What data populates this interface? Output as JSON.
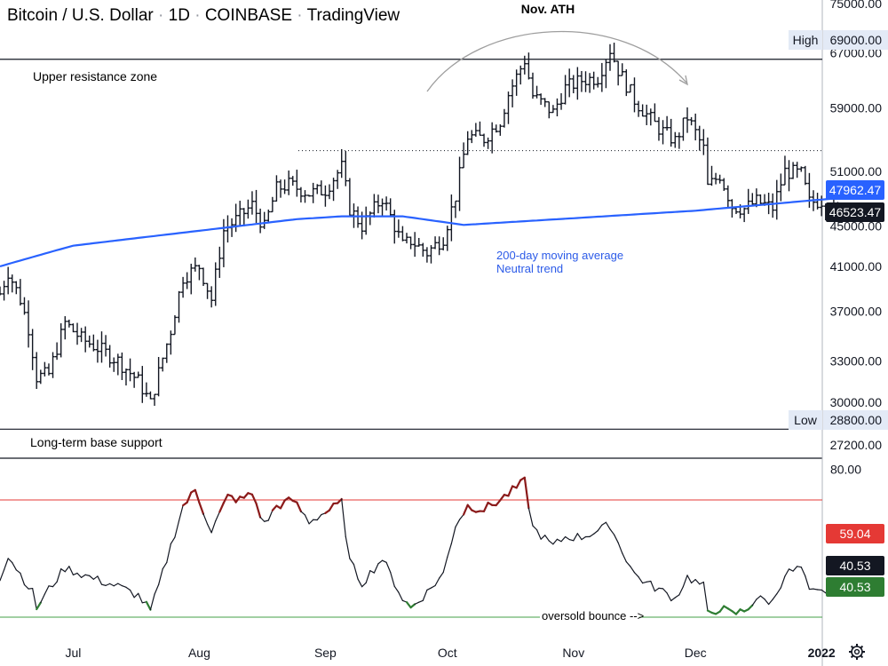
{
  "chart_data": [
    {
      "type": "ohlc",
      "title": "Bitcoin / U.S. Dollar · 1D · COINBASE · TradingView",
      "symbol": "Bitcoin / U.S. Dollar",
      "interval": "1D",
      "exchange": "COINBASE",
      "source": "TradingView",
      "y_scale": "log",
      "ylim": [
        26500,
        76500
      ],
      "y_ticks": [
        {
          "value": 75000,
          "label": "75000.00"
        },
        {
          "value": 67000,
          "label": "67000.00"
        },
        {
          "value": 59000,
          "label": "59000.00"
        },
        {
          "value": 51000,
          "label": "51000.00"
        },
        {
          "value": 45000,
          "label": "45000.00"
        },
        {
          "value": 41000,
          "label": "41000.00"
        },
        {
          "value": 37000,
          "label": "37000.00"
        },
        {
          "value": 33000,
          "label": "33000.00"
        },
        {
          "value": 30000,
          "label": "30000.00"
        },
        {
          "value": 27200,
          "label": "27200.00"
        }
      ],
      "x_range": [
        "2021-06-13",
        "2022-01-08"
      ],
      "x_ticks": [
        {
          "date": "2021-07-01",
          "label": "Jul"
        },
        {
          "date": "2021-08-01",
          "label": "Aug"
        },
        {
          "date": "2021-09-01",
          "label": "Sep"
        },
        {
          "date": "2021-10-01",
          "label": "Oct"
        },
        {
          "date": "2021-11-01",
          "label": "Nov"
        },
        {
          "date": "2021-12-01",
          "label": "Dec"
        },
        {
          "date": "2022-01-01",
          "label": "2022"
        }
      ],
      "anchors": [
        {
          "date": "2021-06-13",
          "close": 38500
        },
        {
          "date": "2021-06-15",
          "close": 40500
        },
        {
          "date": "2021-06-18",
          "close": 38000
        },
        {
          "date": "2021-06-20",
          "close": 35600
        },
        {
          "date": "2021-06-22",
          "close": 31800
        },
        {
          "date": "2021-06-25",
          "close": 32000
        },
        {
          "date": "2021-06-29",
          "close": 36000
        },
        {
          "date": "2021-07-03",
          "close": 34700
        },
        {
          "date": "2021-07-07",
          "close": 34000
        },
        {
          "date": "2021-07-12",
          "close": 33000
        },
        {
          "date": "2021-07-17",
          "close": 31500
        },
        {
          "date": "2021-07-20",
          "close": 29900
        },
        {
          "date": "2021-07-22",
          "close": 32100
        },
        {
          "date": "2021-07-25",
          "close": 35400
        },
        {
          "date": "2021-07-28",
          "close": 40000
        },
        {
          "date": "2021-08-01",
          "close": 41000
        },
        {
          "date": "2021-08-04",
          "close": 38000
        },
        {
          "date": "2021-08-07",
          "close": 44500
        },
        {
          "date": "2021-08-11",
          "close": 46000
        },
        {
          "date": "2021-08-14",
          "close": 47200
        },
        {
          "date": "2021-08-17",
          "close": 44800
        },
        {
          "date": "2021-08-20",
          "close": 49000
        },
        {
          "date": "2021-08-23",
          "close": 49500
        },
        {
          "date": "2021-08-28",
          "close": 48500
        },
        {
          "date": "2021-09-01",
          "close": 48900
        },
        {
          "date": "2021-09-05",
          "close": 51500
        },
        {
          "date": "2021-09-07",
          "close": 46800
        },
        {
          "date": "2021-09-10",
          "close": 45000
        },
        {
          "date": "2021-09-15",
          "close": 48000
        },
        {
          "date": "2021-09-20",
          "close": 43000
        },
        {
          "date": "2021-09-22",
          "close": 43500
        },
        {
          "date": "2021-09-26",
          "close": 42300
        },
        {
          "date": "2021-09-30",
          "close": 43800
        },
        {
          "date": "2021-10-03",
          "close": 48200
        },
        {
          "date": "2021-10-06",
          "close": 55300
        },
        {
          "date": "2021-10-10",
          "close": 55000
        },
        {
          "date": "2021-10-14",
          "close": 57300
        },
        {
          "date": "2021-10-16",
          "close": 60900
        },
        {
          "date": "2021-10-20",
          "close": 65900
        },
        {
          "date": "2021-10-22",
          "close": 60700
        },
        {
          "date": "2021-10-27",
          "close": 58400
        },
        {
          "date": "2021-10-30",
          "close": 61800
        },
        {
          "date": "2021-11-03",
          "close": 62900
        },
        {
          "date": "2021-11-07",
          "close": 63300
        },
        {
          "date": "2021-11-10",
          "close": 67500
        },
        {
          "date": "2021-11-12",
          "close": 64400
        },
        {
          "date": "2021-11-16",
          "close": 60100
        },
        {
          "date": "2021-11-19",
          "close": 58100
        },
        {
          "date": "2021-11-22",
          "close": 56300
        },
        {
          "date": "2021-11-26",
          "close": 54700
        },
        {
          "date": "2021-11-29",
          "close": 57800
        },
        {
          "date": "2021-12-03",
          "close": 53700
        },
        {
          "date": "2021-12-04",
          "close": 49200
        },
        {
          "date": "2021-12-07",
          "close": 50600
        },
        {
          "date": "2021-12-10",
          "close": 47100
        },
        {
          "date": "2021-12-13",
          "close": 46800
        },
        {
          "date": "2021-12-16",
          "close": 47600
        },
        {
          "date": "2021-12-20",
          "close": 46900
        },
        {
          "date": "2021-12-23",
          "close": 51000
        },
        {
          "date": "2021-12-27",
          "close": 50700
        },
        {
          "date": "2021-12-29",
          "close": 47500
        },
        {
          "date": "2022-01-01",
          "close": 47700
        },
        {
          "date": "2022-01-04",
          "close": 46400
        },
        {
          "date": "2022-01-05",
          "close": 46523
        }
      ],
      "moving_average": {
        "name": "200-day moving average",
        "color": "#2962FF",
        "anchors": [
          {
            "date": "2021-06-13",
            "value": 41000
          },
          {
            "date": "2021-07-01",
            "value": 43000
          },
          {
            "date": "2021-08-01",
            "value": 44500
          },
          {
            "date": "2021-08-25",
            "value": 45700
          },
          {
            "date": "2021-09-05",
            "value": 46000
          },
          {
            "date": "2021-09-20",
            "value": 46000
          },
          {
            "date": "2021-10-05",
            "value": 45100
          },
          {
            "date": "2021-11-01",
            "value": 45800
          },
          {
            "date": "2021-12-01",
            "value": 46600
          },
          {
            "date": "2022-01-05",
            "value": 47962
          }
        ]
      },
      "levels": {
        "resistance": 66000,
        "dotted": 53500,
        "support": 28200,
        "high": {
          "label": "High",
          "value": "69000.00"
        },
        "low": {
          "label": "Low",
          "value": "28800.00"
        }
      },
      "price_tags": {
        "ma": {
          "value": "47962.47",
          "color": "#2962FF"
        },
        "last": {
          "value": "46523.47",
          "color": "#131722"
        }
      },
      "annotations": {
        "ath": "Nov. ATH",
        "resistance_zone": "Upper resistance zone",
        "base_support": "Long-term base support",
        "ma_label_1": "200-day moving average",
        "ma_label_2": "Neutral trend"
      }
    },
    {
      "type": "line",
      "name": "oscillator",
      "ylim": [
        30,
        84
      ],
      "y_ticks": [
        {
          "value": 80,
          "label": "80.00"
        }
      ],
      "upper_line": {
        "value": 70,
        "color": "#E53935"
      },
      "lower_line": {
        "value": 32,
        "color": "#43A047"
      },
      "oversold_note": "oversold bounce -->",
      "tags": [
        {
          "value": 59.04,
          "label": "59.04",
          "color": "#E53935"
        },
        {
          "value": 40.53,
          "label": "40.53",
          "color": "#131722"
        },
        {
          "value": 40.53,
          "label": "40.53",
          "color": "#2E7D32"
        }
      ],
      "anchors": [
        {
          "date": "2021-06-13",
          "value": 45
        },
        {
          "date": "2021-06-15",
          "value": 52
        },
        {
          "date": "2021-06-18",
          "value": 46
        },
        {
          "date": "2021-06-21",
          "value": 40
        },
        {
          "date": "2021-06-22",
          "value": 35
        },
        {
          "date": "2021-06-25",
          "value": 41
        },
        {
          "date": "2021-06-29",
          "value": 48
        },
        {
          "date": "2021-07-03",
          "value": 46
        },
        {
          "date": "2021-07-07",
          "value": 44
        },
        {
          "date": "2021-07-12",
          "value": 42
        },
        {
          "date": "2021-07-17",
          "value": 39
        },
        {
          "date": "2021-07-20",
          "value": 34
        },
        {
          "date": "2021-07-22",
          "value": 42
        },
        {
          "date": "2021-07-25",
          "value": 55
        },
        {
          "date": "2021-07-28",
          "value": 68
        },
        {
          "date": "2021-07-31",
          "value": 73
        },
        {
          "date": "2021-08-04",
          "value": 60
        },
        {
          "date": "2021-08-08",
          "value": 71
        },
        {
          "date": "2021-08-11",
          "value": 70
        },
        {
          "date": "2021-08-14",
          "value": 72
        },
        {
          "date": "2021-08-17",
          "value": 62
        },
        {
          "date": "2021-08-20",
          "value": 68
        },
        {
          "date": "2021-08-24",
          "value": 70
        },
        {
          "date": "2021-08-28",
          "value": 63
        },
        {
          "date": "2021-09-01",
          "value": 66
        },
        {
          "date": "2021-09-05",
          "value": 69
        },
        {
          "date": "2021-09-07",
          "value": 50
        },
        {
          "date": "2021-09-10",
          "value": 43
        },
        {
          "date": "2021-09-15",
          "value": 51
        },
        {
          "date": "2021-09-20",
          "value": 38
        },
        {
          "date": "2021-09-22",
          "value": 35
        },
        {
          "date": "2021-09-26",
          "value": 40
        },
        {
          "date": "2021-09-30",
          "value": 46
        },
        {
          "date": "2021-10-03",
          "value": 62
        },
        {
          "date": "2021-10-06",
          "value": 68
        },
        {
          "date": "2021-10-10",
          "value": 67
        },
        {
          "date": "2021-10-14",
          "value": 70
        },
        {
          "date": "2021-10-16",
          "value": 72
        },
        {
          "date": "2021-10-20",
          "value": 76
        },
        {
          "date": "2021-10-22",
          "value": 61
        },
        {
          "date": "2021-10-27",
          "value": 55
        },
        {
          "date": "2021-10-30",
          "value": 58
        },
        {
          "date": "2021-11-03",
          "value": 58
        },
        {
          "date": "2021-11-07",
          "value": 60
        },
        {
          "date": "2021-11-10",
          "value": 62
        },
        {
          "date": "2021-11-12",
          "value": 56
        },
        {
          "date": "2021-11-16",
          "value": 46
        },
        {
          "date": "2021-11-19",
          "value": 43
        },
        {
          "date": "2021-11-22",
          "value": 41
        },
        {
          "date": "2021-11-26",
          "value": 38
        },
        {
          "date": "2021-11-29",
          "value": 45
        },
        {
          "date": "2021-12-03",
          "value": 42
        },
        {
          "date": "2021-12-04",
          "value": 33
        },
        {
          "date": "2021-12-07",
          "value": 35
        },
        {
          "date": "2021-12-10",
          "value": 33
        },
        {
          "date": "2021-12-13",
          "value": 34
        },
        {
          "date": "2021-12-16",
          "value": 38
        },
        {
          "date": "2021-12-20",
          "value": 37
        },
        {
          "date": "2021-12-23",
          "value": 46
        },
        {
          "date": "2021-12-27",
          "value": 48
        },
        {
          "date": "2021-12-29",
          "value": 40
        },
        {
          "date": "2022-01-01",
          "value": 40
        },
        {
          "date": "2022-01-04",
          "value": 42
        },
        {
          "date": "2022-01-05",
          "value": 40.53
        }
      ]
    }
  ],
  "header": {
    "symbol": "Bitcoin / U.S. Dollar",
    "interval": "1D",
    "exchange": "COINBASE",
    "source": "TradingView"
  },
  "colors": {
    "price": "#131722",
    "ma": "#2962FF",
    "ma_text": "#2C5BE8",
    "resistance": "#131722",
    "oscillator": "#131722",
    "overbought": "#8B1A1A",
    "oversold": "#2E7D32",
    "upper_line": "#E53935",
    "lower_line": "#43A047",
    "axis_border": "#B2B5BE",
    "level_tag_bg": "#E3EAF6",
    "arc": "#9E9E9E"
  },
  "icons": {
    "settings": "gear-icon"
  }
}
